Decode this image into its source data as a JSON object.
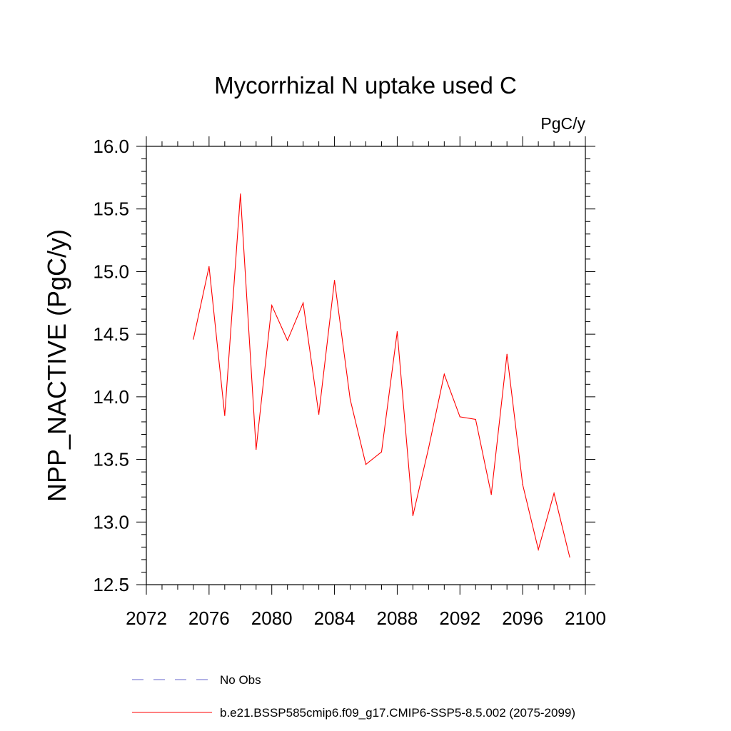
{
  "chart_data": {
    "type": "line",
    "title": "Mycorrhizal N uptake used C",
    "units_label": "PgC/y",
    "ylabel": "NPP_NACTIVE  (PgC/y)",
    "xlabel": "",
    "xlim": [
      2072,
      2100
    ],
    "ylim": [
      12.5,
      16.0
    ],
    "x_ticks": [
      2072,
      2076,
      2080,
      2084,
      2088,
      2092,
      2096,
      2100
    ],
    "x_tick_labels": [
      "2072",
      "2076",
      "2080",
      "2084",
      "2088",
      "2092",
      "2096",
      "2100"
    ],
    "y_ticks": [
      12.5,
      13.0,
      13.5,
      14.0,
      14.5,
      15.0,
      15.5,
      16.0
    ],
    "y_tick_labels": [
      "12.5",
      "13.0",
      "13.5",
      "14.0",
      "14.5",
      "15.0",
      "15.5",
      "16.0"
    ],
    "grid": false,
    "legend_position": "bottom",
    "series": [
      {
        "name": "b.e21.BSSP585cmip6.f09_g17.CMIP6-SSP5-8.5.002 (2075-2099)",
        "color": "#ff0000",
        "style": "solid",
        "x": [
          2075,
          2076,
          2077,
          2078,
          2079,
          2080,
          2081,
          2082,
          2083,
          2084,
          2085,
          2086,
          2087,
          2088,
          2089,
          2090,
          2091,
          2092,
          2093,
          2094,
          2095,
          2096,
          2097,
          2098,
          2099
        ],
        "y": [
          14.46,
          15.04,
          13.85,
          15.62,
          13.58,
          14.73,
          14.45,
          14.75,
          13.86,
          14.93,
          13.98,
          13.46,
          13.56,
          14.52,
          13.05,
          13.59,
          14.18,
          13.84,
          13.82,
          13.22,
          14.34,
          13.3,
          12.78,
          13.23,
          12.72
        ]
      }
    ],
    "legend": [
      {
        "label": "No Obs",
        "color": "#6666cc",
        "style": "dashed"
      },
      {
        "label": "b.e21.BSSP585cmip6.f09_g17.CMIP6-SSP5-8.5.002 (2075-2099)",
        "color": "#ff0000",
        "style": "solid"
      }
    ]
  }
}
